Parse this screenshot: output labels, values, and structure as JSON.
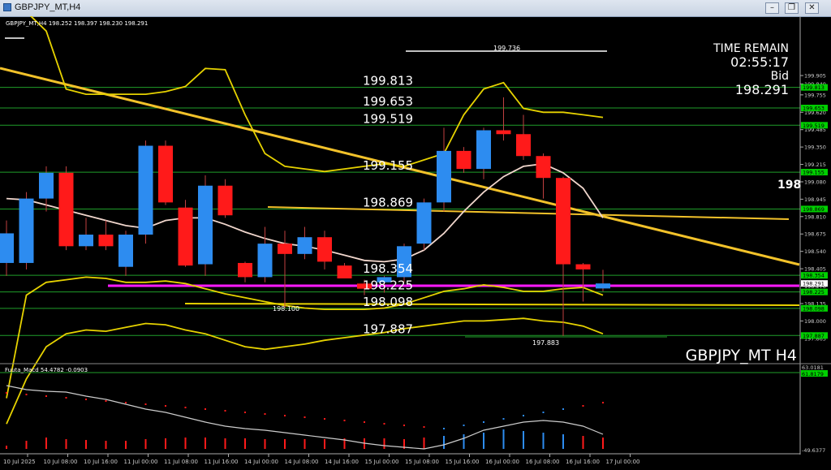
{
  "window": {
    "title": "GBPJPY_MT,H4",
    "btn_min": "–",
    "btn_restore": "❐",
    "btn_close": "✕"
  },
  "main": {
    "info": "GBPJPY_MT,H4 198.252 198.397 198.230 198.291",
    "symbol_label": "GBPJPY_MT H4",
    "time_remain_label": "TIME REMAIN",
    "time_remain_value": "02:55:17",
    "bid_label": "Bid",
    "bid_value": "198.291",
    "edge_price": "198",
    "high_marker": "199.736",
    "low_marker_a": "198.100",
    "low_marker_b": "197.883"
  },
  "sub": {
    "info": "Fuuta_Macd 54.4782 -0.0903",
    "scale_top": "63.0181",
    "scale_tag": "61.8179",
    "scale_bottom": "-49.6377"
  },
  "colors": {
    "background": "#000000",
    "bull": "#2d8cf0",
    "bear": "#ff1a1a",
    "level_line": "#1f9e2a",
    "band": "#e6d200",
    "trend": "#f2c22a",
    "pivot": "#ff1aff",
    "tag": "#00d000"
  },
  "chart_data": [
    {
      "type": "candlestick",
      "title": "GBPJPY_MT,H4",
      "y_ticks": [
        "199.905",
        "199.840",
        "199.755",
        "199.620",
        "199.485",
        "199.350",
        "199.215",
        "199.080",
        "198.945",
        "198.810",
        "198.675",
        "198.540",
        "198.405",
        "198.270",
        "198.135",
        "198.000",
        "197.865"
      ],
      "x_ticks": [
        "10 Jul 2025",
        "10 Jul 08:00",
        "10 Jul 16:00",
        "11 Jul 00:00",
        "11 Jul 08:00",
        "11 Jul 16:00",
        "14 Jul 00:00",
        "14 Jul 08:00",
        "14 Jul 16:00",
        "15 Jul 00:00",
        "15 Jul 08:00",
        "15 Jul 16:00",
        "16 Jul 00:00",
        "16 Jul 08:00",
        "16 Jul 16:00",
        "17 Jul 00:00"
      ],
      "levels": [
        {
          "price": 199.813,
          "label": "199.813",
          "tag": "199.813"
        },
        {
          "price": 199.653,
          "label": "199.653",
          "tag": "199.653"
        },
        {
          "price": 199.519,
          "label": "199.519",
          "tag": "199.519"
        },
        {
          "price": 199.155,
          "label": "199.155",
          "tag": "199.155"
        },
        {
          "price": 198.869,
          "label": "198.869",
          "tag": "198.869"
        },
        {
          "price": 198.354,
          "label": "198.354",
          "tag": "198.354"
        },
        {
          "price": 198.225,
          "label": "198.225",
          "tag": "198.225"
        },
        {
          "price": 198.098,
          "label": "198.098",
          "tag": "198.098"
        },
        {
          "price": 197.887,
          "label": "197.887",
          "tag": "197.887"
        }
      ],
      "candles": [
        {
          "o": 198.45,
          "h": 198.78,
          "l": 198.35,
          "c": 198.68
        },
        {
          "o": 198.45,
          "h": 199.0,
          "l": 198.4,
          "c": 198.95
        },
        {
          "o": 198.95,
          "h": 199.2,
          "l": 198.85,
          "c": 199.15
        },
        {
          "o": 199.15,
          "h": 199.2,
          "l": 198.55,
          "c": 198.58
        },
        {
          "o": 198.58,
          "h": 198.8,
          "l": 198.55,
          "c": 198.67
        },
        {
          "o": 198.67,
          "h": 198.78,
          "l": 198.55,
          "c": 198.58
        },
        {
          "o": 198.42,
          "h": 198.7,
          "l": 198.35,
          "c": 198.67
        },
        {
          "o": 198.67,
          "h": 199.4,
          "l": 198.6,
          "c": 199.36
        },
        {
          "o": 199.36,
          "h": 199.4,
          "l": 198.9,
          "c": 198.92
        },
        {
          "o": 198.88,
          "h": 198.94,
          "l": 198.42,
          "c": 198.43
        },
        {
          "o": 198.44,
          "h": 199.13,
          "l": 198.35,
          "c": 199.05
        },
        {
          "o": 199.05,
          "h": 199.1,
          "l": 198.8,
          "c": 198.82
        },
        {
          "o": 198.45,
          "h": 198.46,
          "l": 198.3,
          "c": 198.34
        },
        {
          "o": 198.34,
          "h": 198.73,
          "l": 198.3,
          "c": 198.6
        },
        {
          "o": 198.6,
          "h": 198.7,
          "l": 198.1,
          "c": 198.52
        },
        {
          "o": 198.52,
          "h": 198.73,
          "l": 198.48,
          "c": 198.65
        },
        {
          "o": 198.65,
          "h": 198.7,
          "l": 198.4,
          "c": 198.46
        },
        {
          "o": 198.43,
          "h": 198.45,
          "l": 198.33,
          "c": 198.33
        },
        {
          "o": 198.29,
          "h": 198.32,
          "l": 198.2,
          "c": 198.25
        },
        {
          "o": 198.3,
          "h": 198.35,
          "l": 198.22,
          "c": 198.34
        },
        {
          "o": 198.34,
          "h": 198.6,
          "l": 198.3,
          "c": 198.58
        },
        {
          "o": 198.6,
          "h": 198.95,
          "l": 198.55,
          "c": 198.92
        },
        {
          "o": 198.92,
          "h": 199.5,
          "l": 198.85,
          "c": 199.32
        },
        {
          "o": 199.32,
          "h": 199.35,
          "l": 199.15,
          "c": 199.18
        },
        {
          "o": 199.18,
          "h": 199.5,
          "l": 199.1,
          "c": 199.48
        },
        {
          "o": 199.48,
          "h": 199.736,
          "l": 199.4,
          "c": 199.45
        },
        {
          "o": 199.45,
          "h": 199.6,
          "l": 199.25,
          "c": 199.28
        },
        {
          "o": 199.28,
          "h": 199.3,
          "l": 198.95,
          "c": 199.11
        },
        {
          "o": 199.11,
          "h": 199.12,
          "l": 197.883,
          "c": 198.44
        },
        {
          "o": 198.44,
          "h": 198.45,
          "l": 198.15,
          "c": 198.4
        },
        {
          "o": 198.252,
          "h": 198.397,
          "l": 198.23,
          "c": 198.291
        }
      ],
      "bands": {
        "upper": [
          197.4,
          198.2,
          198.3,
          198.32,
          198.34,
          198.33,
          198.3,
          198.3,
          198.31,
          198.29,
          198.25,
          198.21,
          198.18,
          198.15,
          198.12,
          198.1,
          198.09,
          198.09,
          198.09,
          198.1,
          198.13,
          198.18,
          198.23,
          198.25,
          198.28,
          198.26,
          198.23,
          198.23,
          198.25,
          198.26,
          198.2
        ],
        "mid": [
          198.95,
          198.94,
          198.9,
          198.86,
          198.82,
          198.78,
          198.74,
          198.72,
          198.78,
          198.8,
          198.8,
          198.75,
          198.69,
          198.64,
          198.6,
          198.58,
          198.55,
          198.51,
          198.47,
          198.46,
          198.48,
          198.55,
          198.68,
          198.85,
          199.0,
          199.12,
          199.2,
          199.22,
          199.15,
          199.03,
          198.8
        ],
        "lower": [
          197.2,
          197.55,
          197.8,
          197.9,
          197.93,
          197.92,
          197.95,
          197.98,
          197.97,
          197.93,
          197.9,
          197.85,
          197.8,
          197.78,
          197.8,
          197.82,
          197.85,
          197.87,
          197.89,
          197.91,
          197.94,
          197.96,
          197.98,
          198.0,
          198.0,
          198.01,
          198.02,
          198.0,
          197.99,
          197.96,
          197.9
        ]
      },
      "yellow_outer_upper": [
        200.55,
        200.4,
        200.25,
        199.8,
        199.76,
        199.76,
        199.76,
        199.76,
        199.78,
        199.82,
        199.96,
        199.95,
        199.6,
        199.3,
        199.2,
        199.18,
        199.16,
        199.18,
        199.2,
        199.22,
        199.2,
        199.25,
        199.3,
        199.6,
        199.8,
        199.85,
        199.65,
        199.62,
        199.62,
        199.6,
        199.58
      ]
    },
    {
      "type": "line",
      "title": "Fuuta_Macd",
      "values": [
        54.4782,
        -0.0903
      ]
    }
  ]
}
